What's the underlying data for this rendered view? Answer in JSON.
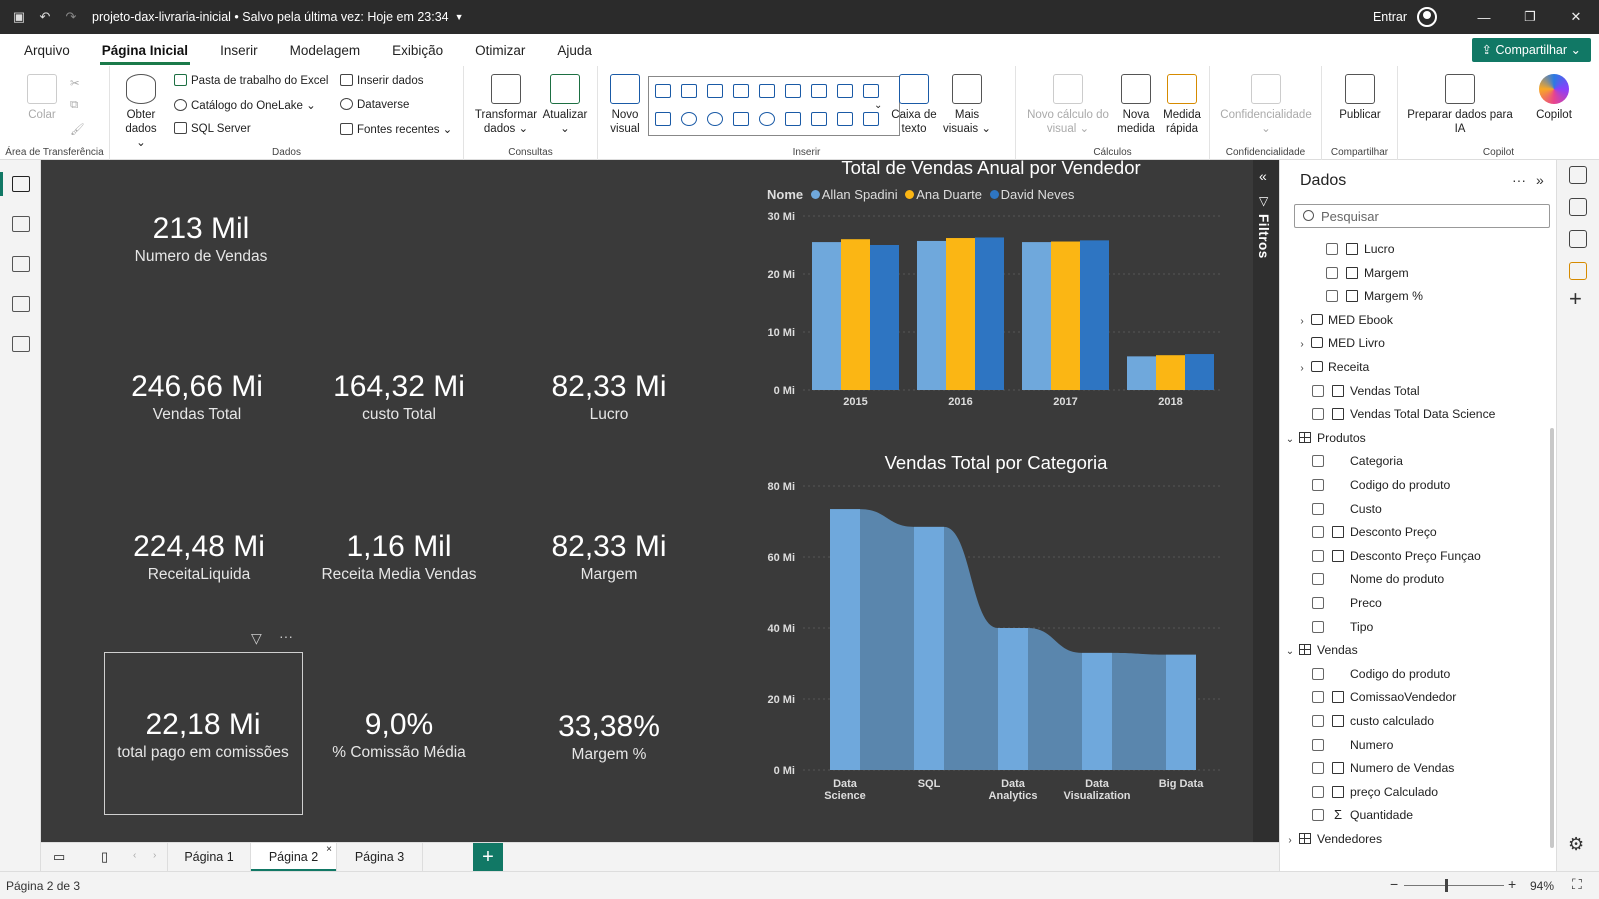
{
  "window": {
    "filename": "projeto-dax-livraria-inicial",
    "saved_status": "Salvo pela última vez: Hoje em 23:34",
    "signin_label": "Entrar"
  },
  "menu": {
    "items": [
      "Arquivo",
      "Página Inicial",
      "Inserir",
      "Modelagem",
      "Exibição",
      "Otimizar",
      "Ajuda"
    ],
    "active": "Página Inicial",
    "share_label": "Compartilhar"
  },
  "ribbon": {
    "clipboard": {
      "colar": "Colar",
      "group": "Área de Transferência"
    },
    "dados": {
      "obter1": "Obter",
      "obter2": "dados",
      "excel": "Pasta de trabalho do Excel",
      "onelake": "Catálogo do OneLake",
      "sql": "SQL Server",
      "inserir": "Inserir dados",
      "dataverse": "Dataverse",
      "fontes": "Fontes recentes",
      "group": "Dados"
    },
    "consultas": {
      "transformar1": "Transformar",
      "transformar2": "dados",
      "atualizar": "Atualizar",
      "group": "Consultas"
    },
    "inserir": {
      "novo1": "Novo",
      "novo2": "visual",
      "caixa1": "Caixa de",
      "caixa2": "texto",
      "mais1": "Mais",
      "mais2": "visuais",
      "group": "Inserir"
    },
    "calculos": {
      "novocalc1": "Novo cálculo do",
      "novocalc2": "visual",
      "novamed1": "Nova",
      "novamed2": "medida",
      "medrap1": "Medida",
      "medrap2": "rápida",
      "group": "Cálculos"
    },
    "confid": {
      "label": "Confidencialidade",
      "group": "Confidencialidade"
    },
    "compartilhar": {
      "publicar": "Publicar",
      "group": "Compartilhar"
    },
    "copilot": {
      "preparar1": "Preparar dados para",
      "preparar2": "IA",
      "copilot": "Copilot",
      "group": "Copilot"
    }
  },
  "kpis": [
    {
      "value": "213 Mil",
      "label": "Numero de Vendas"
    },
    {
      "value": "246,66 Mi",
      "label": "Vendas Total"
    },
    {
      "value": "164,32 Mi",
      "label": "custo Total"
    },
    {
      "value": "82,33 Mi",
      "label": "Lucro"
    },
    {
      "value": "224,48 Mi",
      "label": "ReceitaLiquida"
    },
    {
      "value": "1,16 Mil",
      "label": "Receita Media Vendas"
    },
    {
      "value": "82,33 Mi",
      "label": "Margem"
    },
    {
      "value": "22,18 Mi",
      "label": "total pago em comissões"
    },
    {
      "value": "9,0%",
      "label": "% Comissão Média"
    },
    {
      "value": "33,38%",
      "label": "Margem %"
    }
  ],
  "chart_data": [
    {
      "type": "bar",
      "title": "Total de Vendas Anual por Vendedor",
      "legend_title": "Nome",
      "legend_position": "top-left",
      "categories": [
        "2015",
        "2016",
        "2017",
        "2018"
      ],
      "series": [
        {
          "name": "Allan Spadini",
          "color": "#6fa8dc",
          "values": [
            25.5,
            25.7,
            25.5,
            5.8
          ]
        },
        {
          "name": "Ana Duarte",
          "color": "#fbb614",
          "values": [
            26.0,
            26.2,
            25.6,
            6.0
          ]
        },
        {
          "name": "David Neves",
          "color": "#2e75c2",
          "values": [
            25.0,
            26.3,
            25.8,
            6.2
          ]
        }
      ],
      "yticks": [
        "0 Mi",
        "10 Mi",
        "20 Mi",
        "30 Mi"
      ],
      "ylim": [
        0,
        30
      ],
      "grid": true
    },
    {
      "type": "bar",
      "title": "Vendas Total por Categoria",
      "categories": [
        "Data Science",
        "SQL",
        "Data Analytics",
        "Data Visualization",
        "Big Data"
      ],
      "values": [
        73.5,
        68.5,
        40.0,
        33.0,
        32.5
      ],
      "color": "#6fa8dc",
      "ribbon_color": "#5a86ad",
      "yticks": [
        "0 Mi",
        "20 Mi",
        "40 Mi",
        "60 Mi",
        "80 Mi"
      ],
      "ylim": [
        0,
        80
      ],
      "grid": true
    }
  ],
  "filters_label": "Filtros",
  "data_pane": {
    "title": "Dados",
    "search_placeholder": "Pesquisar",
    "rows": [
      {
        "kind": "calc",
        "indent": 2,
        "label": "Lucro"
      },
      {
        "kind": "calc",
        "indent": 2,
        "label": "Margem"
      },
      {
        "kind": "calc",
        "indent": 2,
        "label": "Margem %"
      },
      {
        "kind": "folder",
        "indent": 1,
        "label": "MED Ebook"
      },
      {
        "kind": "folder",
        "indent": 1,
        "label": "MED Livro"
      },
      {
        "kind": "folder",
        "indent": 1,
        "label": "Receita"
      },
      {
        "kind": "calc",
        "indent": 1,
        "label": "Vendas Total"
      },
      {
        "kind": "calc",
        "indent": 1,
        "label": "Vendas Total Data Science"
      },
      {
        "kind": "table",
        "indent": 0,
        "label": "Produtos"
      },
      {
        "kind": "field",
        "indent": 1,
        "label": "Categoria"
      },
      {
        "kind": "field",
        "indent": 1,
        "label": "Codigo do produto"
      },
      {
        "kind": "field",
        "indent": 1,
        "label": "Custo"
      },
      {
        "kind": "ccol",
        "indent": 1,
        "label": "Desconto Preço"
      },
      {
        "kind": "ccol",
        "indent": 1,
        "label": "Desconto Preço Funçao"
      },
      {
        "kind": "field",
        "indent": 1,
        "label": "Nome do produto"
      },
      {
        "kind": "field",
        "indent": 1,
        "label": "Preco"
      },
      {
        "kind": "field",
        "indent": 1,
        "label": "Tipo"
      },
      {
        "kind": "table",
        "indent": 0,
        "label": "Vendas"
      },
      {
        "kind": "field",
        "indent": 1,
        "label": "Codigo do produto"
      },
      {
        "kind": "ccol",
        "indent": 1,
        "label": "ComissaoVendedor"
      },
      {
        "kind": "ccol",
        "indent": 1,
        "label": "custo calculado"
      },
      {
        "kind": "field",
        "indent": 1,
        "label": "Numero"
      },
      {
        "kind": "calc",
        "indent": 1,
        "label": "Numero de Vendas"
      },
      {
        "kind": "ccol",
        "indent": 1,
        "label": "preço Calculado"
      },
      {
        "kind": "sum",
        "indent": 1,
        "label": "Quantidade"
      },
      {
        "kind": "tablec",
        "indent": 0,
        "label": "Vendedores"
      }
    ]
  },
  "pages": {
    "tabs": [
      "Página 1",
      "Página 2",
      "Página 3"
    ],
    "active": "Página 2"
  },
  "status": {
    "page_info": "Página 2 de 3",
    "zoom": "94%"
  }
}
